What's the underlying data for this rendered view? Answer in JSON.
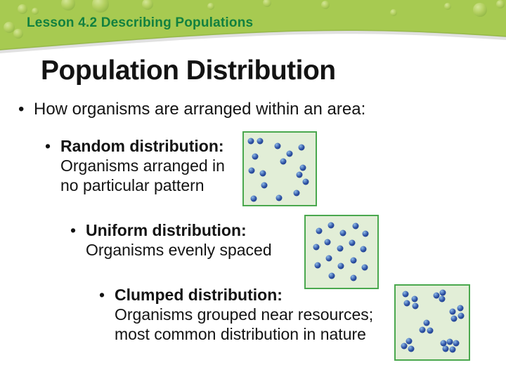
{
  "colors": {
    "band-green": "#a7ca51",
    "band-droplet": "#bcd66e",
    "header-text": "#12813f",
    "text": "#131313",
    "box-fill": "#e2eed7",
    "box-border": "#4aa84e",
    "dot-base": "#2a4da1",
    "dot-highlight": "#8fbce8"
  },
  "header": {
    "label": "Lesson 4.2 Describing Populations"
  },
  "title": "Population Distribution",
  "bullet_char": "•",
  "intro": "How organisms are arranged within an area:",
  "sections": [
    {
      "name": "random",
      "heading": "Random distribution:",
      "line1": "Organisms arranged in",
      "line2": "no particular pattern",
      "dots": [
        [
          9.6,
          11.4
        ],
        [
          23.0,
          11.4
        ],
        [
          47.0,
          18.0
        ],
        [
          80.8,
          20.0
        ],
        [
          63.5,
          29.5
        ],
        [
          15.4,
          33.3
        ],
        [
          54.8,
          40.0
        ],
        [
          82.7,
          48.6
        ],
        [
          10.6,
          52.4
        ],
        [
          26.9,
          56.2
        ],
        [
          77.9,
          58.1
        ],
        [
          86.5,
          67.6
        ],
        [
          28.8,
          72.4
        ],
        [
          73.1,
          83.8
        ],
        [
          49.0,
          90.5
        ],
        [
          13.5,
          91.4
        ]
      ]
    },
    {
      "name": "uniform",
      "heading": "Uniform distribution:",
      "line1": "Organisms evenly spaced",
      "dots": [
        [
          35.2,
          12.3
        ],
        [
          69.5,
          14.2
        ],
        [
          19.0,
          20.8
        ],
        [
          52.4,
          23.6
        ],
        [
          82.9,
          24.5
        ],
        [
          30.5,
          35.8
        ],
        [
          64.8,
          36.8
        ],
        [
          14.3,
          43.4
        ],
        [
          47.6,
          45.3
        ],
        [
          80.0,
          46.2
        ],
        [
          32.4,
          58.5
        ],
        [
          66.7,
          61.3
        ],
        [
          17.1,
          68.9
        ],
        [
          49.5,
          69.8
        ],
        [
          81.9,
          71.7
        ],
        [
          36.2,
          83.0
        ],
        [
          66.7,
          85.8
        ]
      ]
    },
    {
      "name": "clumped",
      "heading": "Clumped distribution:",
      "line1": "Organisms grouped near resources;",
      "line2": "most common distribution in nature",
      "dots": [
        [
          13.9,
          11.1
        ],
        [
          25.9,
          18.5
        ],
        [
          15.7,
          24.1
        ],
        [
          26.9,
          27.8
        ],
        [
          55.6,
          13.0
        ],
        [
          64.8,
          9.3
        ],
        [
          63.9,
          18.5
        ],
        [
          77.8,
          35.2
        ],
        [
          88.0,
          30.6
        ],
        [
          89.8,
          40.7
        ],
        [
          79.6,
          44.4
        ],
        [
          42.6,
          50.9
        ],
        [
          37.0,
          60.2
        ],
        [
          47.2,
          61.1
        ],
        [
          18.5,
          75.0
        ],
        [
          11.1,
          81.5
        ],
        [
          21.3,
          86.1
        ],
        [
          65.7,
          77.8
        ],
        [
          74.1,
          75.9
        ],
        [
          82.4,
          77.8
        ],
        [
          68.5,
          86.1
        ],
        [
          77.8,
          87.0
        ]
      ]
    }
  ]
}
